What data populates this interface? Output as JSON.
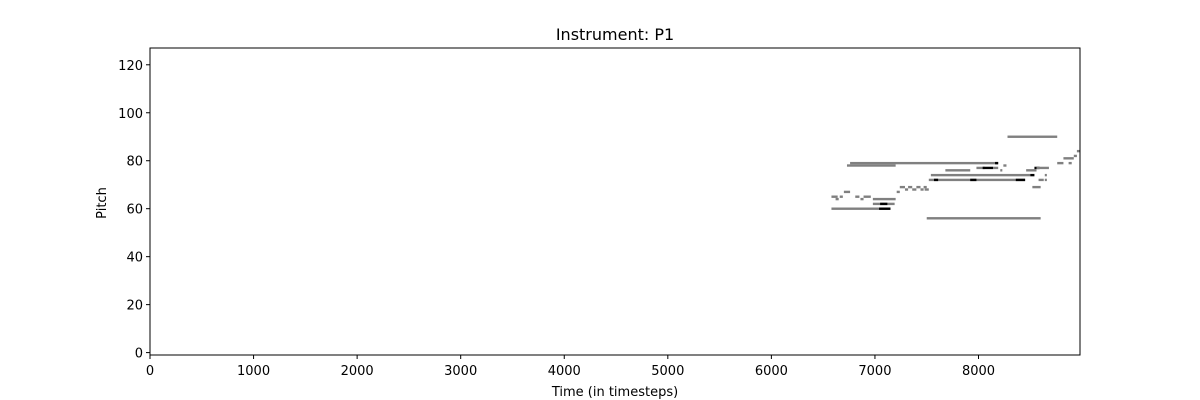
{
  "chart_data": {
    "type": "heatmap",
    "title": "Instrument: P1",
    "xlabel": "Time (in timesteps)",
    "ylabel": "Pitch",
    "xlim": [
      0,
      8980
    ],
    "ylim": [
      -1,
      127
    ],
    "x_ticks": [
      0,
      1000,
      2000,
      3000,
      4000,
      5000,
      6000,
      7000,
      8000
    ],
    "y_ticks": [
      0,
      20,
      40,
      60,
      80,
      100,
      120
    ],
    "grid": false,
    "legend": "none",
    "colors": {
      "note": "#808080",
      "overlap": "#000000",
      "axes": "#000000",
      "background": "#ffffff"
    },
    "notes": [
      {
        "start": 6580,
        "end": 7150,
        "pitch": 60,
        "intensity": "mid"
      },
      {
        "start": 7040,
        "end": 7150,
        "pitch": 60,
        "intensity": "high"
      },
      {
        "start": 6980,
        "end": 7190,
        "pitch": 62,
        "intensity": "mid"
      },
      {
        "start": 7050,
        "end": 7120,
        "pitch": 62,
        "intensity": "high"
      },
      {
        "start": 6980,
        "end": 7200,
        "pitch": 64,
        "intensity": "mid"
      },
      {
        "start": 6580,
        "end": 6640,
        "pitch": 65,
        "intensity": "mid"
      },
      {
        "start": 6660,
        "end": 6690,
        "pitch": 65,
        "intensity": "mid"
      },
      {
        "start": 6810,
        "end": 6850,
        "pitch": 65,
        "intensity": "mid"
      },
      {
        "start": 6890,
        "end": 6960,
        "pitch": 65,
        "intensity": "mid"
      },
      {
        "start": 6620,
        "end": 6650,
        "pitch": 64,
        "intensity": "mid"
      },
      {
        "start": 6860,
        "end": 6890,
        "pitch": 64,
        "intensity": "mid"
      },
      {
        "start": 6700,
        "end": 6760,
        "pitch": 67,
        "intensity": "mid"
      },
      {
        "start": 7210,
        "end": 7240,
        "pitch": 67,
        "intensity": "mid"
      },
      {
        "start": 7240,
        "end": 7290,
        "pitch": 69,
        "intensity": "mid"
      },
      {
        "start": 7290,
        "end": 7320,
        "pitch": 68,
        "intensity": "mid"
      },
      {
        "start": 7320,
        "end": 7360,
        "pitch": 69,
        "intensity": "mid"
      },
      {
        "start": 7360,
        "end": 7400,
        "pitch": 68,
        "intensity": "mid"
      },
      {
        "start": 7400,
        "end": 7440,
        "pitch": 69,
        "intensity": "mid"
      },
      {
        "start": 7440,
        "end": 7470,
        "pitch": 68,
        "intensity": "mid"
      },
      {
        "start": 7470,
        "end": 7500,
        "pitch": 69,
        "intensity": "mid"
      },
      {
        "start": 7480,
        "end": 7520,
        "pitch": 68,
        "intensity": "mid"
      },
      {
        "start": 6730,
        "end": 7200,
        "pitch": 78,
        "intensity": "mid"
      },
      {
        "start": 6760,
        "end": 8190,
        "pitch": 79,
        "intensity": "mid"
      },
      {
        "start": 8160,
        "end": 8190,
        "pitch": 79,
        "intensity": "high"
      },
      {
        "start": 8240,
        "end": 8270,
        "pitch": 78,
        "intensity": "mid"
      },
      {
        "start": 8280,
        "end": 8760,
        "pitch": 90,
        "intensity": "mid"
      },
      {
        "start": 7500,
        "end": 8600,
        "pitch": 56,
        "intensity": "mid"
      },
      {
        "start": 7520,
        "end": 8450,
        "pitch": 72,
        "intensity": "mid"
      },
      {
        "start": 7570,
        "end": 7610,
        "pitch": 72,
        "intensity": "high"
      },
      {
        "start": 7920,
        "end": 7980,
        "pitch": 72,
        "intensity": "high"
      },
      {
        "start": 8360,
        "end": 8450,
        "pitch": 72,
        "intensity": "high"
      },
      {
        "start": 7540,
        "end": 8500,
        "pitch": 74,
        "intensity": "mid"
      },
      {
        "start": 8500,
        "end": 8540,
        "pitch": 74,
        "intensity": "high"
      },
      {
        "start": 7680,
        "end": 7920,
        "pitch": 76,
        "intensity": "mid"
      },
      {
        "start": 7980,
        "end": 8060,
        "pitch": 77,
        "intensity": "mid"
      },
      {
        "start": 8040,
        "end": 8140,
        "pitch": 77,
        "intensity": "high"
      },
      {
        "start": 8140,
        "end": 8190,
        "pitch": 77,
        "intensity": "mid"
      },
      {
        "start": 8210,
        "end": 8230,
        "pitch": 76,
        "intensity": "mid"
      },
      {
        "start": 8460,
        "end": 8560,
        "pitch": 76,
        "intensity": "mid"
      },
      {
        "start": 8540,
        "end": 8590,
        "pitch": 77,
        "intensity": "high"
      },
      {
        "start": 8560,
        "end": 8680,
        "pitch": 77,
        "intensity": "mid"
      },
      {
        "start": 8580,
        "end": 8630,
        "pitch": 72,
        "intensity": "mid"
      },
      {
        "start": 8640,
        "end": 8660,
        "pitch": 72,
        "intensity": "mid"
      },
      {
        "start": 8520,
        "end": 8600,
        "pitch": 69,
        "intensity": "mid"
      },
      {
        "start": 8640,
        "end": 8660,
        "pitch": 74,
        "intensity": "mid"
      },
      {
        "start": 8760,
        "end": 8820,
        "pitch": 79,
        "intensity": "mid"
      },
      {
        "start": 8820,
        "end": 8920,
        "pitch": 81,
        "intensity": "mid"
      },
      {
        "start": 8870,
        "end": 8900,
        "pitch": 79,
        "intensity": "mid"
      },
      {
        "start": 8920,
        "end": 8950,
        "pitch": 82,
        "intensity": "mid"
      },
      {
        "start": 8950,
        "end": 8980,
        "pitch": 84,
        "intensity": "mid"
      }
    ]
  }
}
